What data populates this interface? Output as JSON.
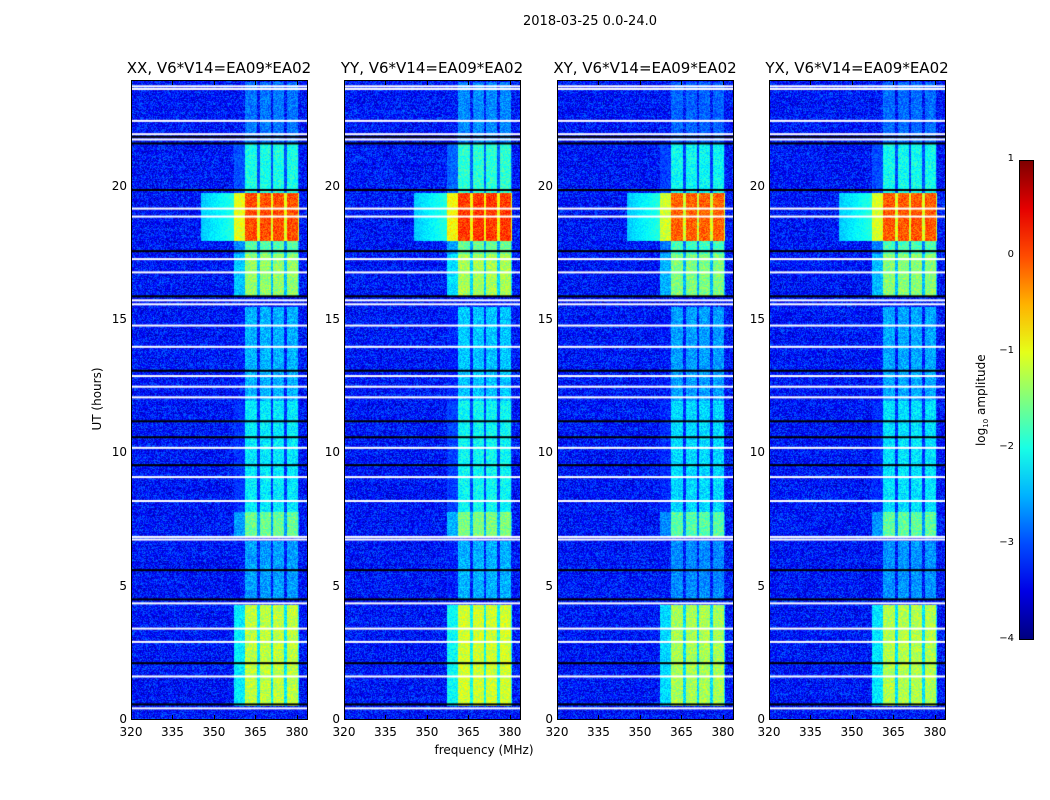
{
  "chart_data": {
    "type": "heatmap",
    "title": "2018-03-25 0.0-24.0",
    "xlabel": "frequency (MHz)",
    "ylabel": "UT (hours)",
    "xlim": [
      320,
      384
    ],
    "ylim": [
      0,
      24
    ],
    "xticks": [
      "320",
      "335",
      "350",
      "365",
      "380"
    ],
    "xtick_values": [
      320,
      335,
      350,
      365,
      380
    ],
    "yticks": [
      "0",
      "5",
      "10",
      "15",
      "20"
    ],
    "ytick_values": [
      0,
      5,
      10,
      15,
      20
    ],
    "panels": [
      {
        "title": "XX, V6*V14=EA09*EA02",
        "offset": 0.0
      },
      {
        "title": "YY, V6*V14=EA09*EA02",
        "offset": 0.1
      },
      {
        "title": "XY, V6*V14=EA09*EA02",
        "offset": -0.1
      },
      {
        "title": "YX, V6*V14=EA09*EA02",
        "offset": -0.05
      }
    ],
    "background_log_amplitude": -3.3,
    "rfi_bands_mhz": [
      [
        361,
        365.5
      ],
      [
        366.5,
        370.5
      ],
      [
        371.5,
        375.5
      ],
      [
        376.5,
        380.5
      ]
    ],
    "rfi_levels_by_time": [
      {
        "t": [
          0.5,
          4.3
        ],
        "level": -1.2
      },
      {
        "t": [
          4.5,
          6.7
        ],
        "level": -2.6
      },
      {
        "t": [
          6.9,
          7.8
        ],
        "level": -1.6
      },
      {
        "t": [
          7.8,
          12.0
        ],
        "level": -2.2
      },
      {
        "t": [
          12.0,
          15.5
        ],
        "level": -2.5
      },
      {
        "t": [
          15.9,
          17.5
        ],
        "level": -1.4
      },
      {
        "t": [
          17.5,
          18.0
        ],
        "level": -1.7
      },
      {
        "t": [
          18.0,
          19.8
        ],
        "level": 0.0
      },
      {
        "t": [
          19.8,
          21.7
        ],
        "level": -2.0
      },
      {
        "t": [
          21.7,
          24.0
        ],
        "level": -2.8
      }
    ],
    "flagged_hours_white": [
      0.4,
      1.6,
      2.9,
      3.4,
      4.35,
      6.75,
      6.85,
      8.2,
      9.1,
      10.2,
      12.1,
      12.5,
      12.9,
      14.0,
      14.8,
      15.6,
      15.75,
      16.8,
      17.3,
      18.9,
      19.2,
      21.8,
      22.0,
      22.5,
      23.7,
      23.8
    ],
    "zero_hours_black": [
      0.55,
      2.1,
      4.5,
      5.6,
      9.55,
      10.6,
      11.2,
      13.1,
      15.9,
      17.6,
      19.9,
      21.65,
      21.9
    ],
    "colorbar": {
      "label": "log10 amplitude",
      "label_main": "log",
      "label_sub": "10",
      "label_rest": " amplitude",
      "range": [
        -4,
        1
      ],
      "ticks": [
        "1",
        "0",
        "−1",
        "−2",
        "−3",
        "−4"
      ],
      "tick_values": [
        1,
        0,
        -1,
        -2,
        -3,
        -4
      ],
      "colormap": "jet"
    }
  }
}
